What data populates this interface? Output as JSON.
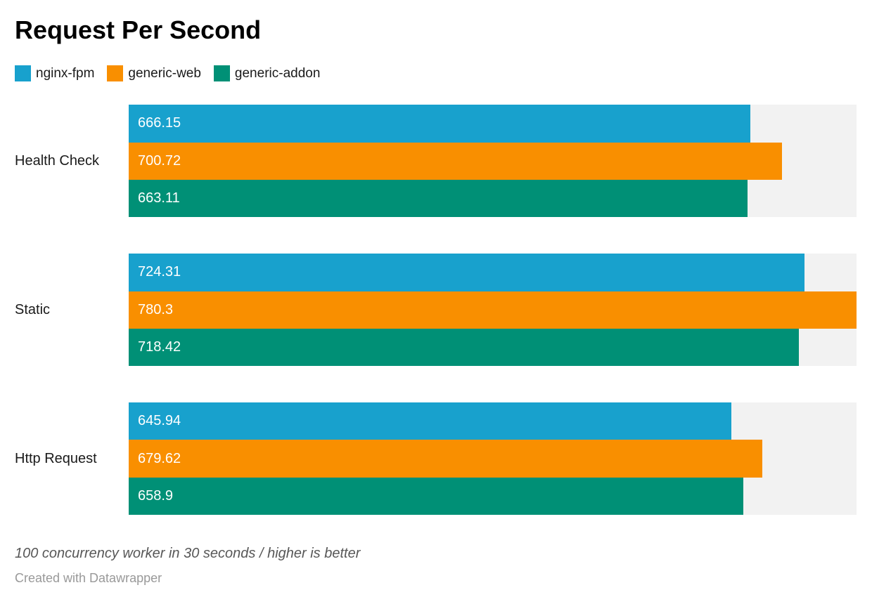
{
  "title": "Request Per Second",
  "legend": {
    "items": [
      {
        "label": "nginx-fpm",
        "color": "#18a1cd"
      },
      {
        "label": "generic-web",
        "color": "#f98f00"
      },
      {
        "label": "generic-addon",
        "color": "#009076"
      }
    ]
  },
  "chart_data": {
    "type": "bar",
    "orientation": "horizontal",
    "title": "Request Per Second",
    "categories": [
      "Health Check",
      "Static",
      "Http Request"
    ],
    "series": [
      {
        "name": "nginx-fpm",
        "color": "#18a1cd",
        "values": [
          666.15,
          724.31,
          645.94
        ],
        "labels": [
          "666.15",
          "724.31",
          "645.94"
        ]
      },
      {
        "name": "generic-web",
        "color": "#f98f00",
        "values": [
          700.72,
          780.3,
          679.62
        ],
        "labels": [
          "700.72",
          "780.3",
          "679.62"
        ]
      },
      {
        "name": "generic-addon",
        "color": "#009076",
        "values": [
          663.11,
          718.42,
          658.9
        ],
        "labels": [
          "663.11",
          "718.42",
          "658.9"
        ]
      }
    ],
    "xlim": [
      0,
      780.3
    ],
    "value_labels": true,
    "grid": false,
    "legend_position": "top",
    "track_color": "#f2f2f2",
    "value_label_color": "#ffffff"
  },
  "footer": {
    "note": "100 concurrency worker in 30 seconds / higher is better",
    "attribution": "Created with Datawrapper"
  }
}
